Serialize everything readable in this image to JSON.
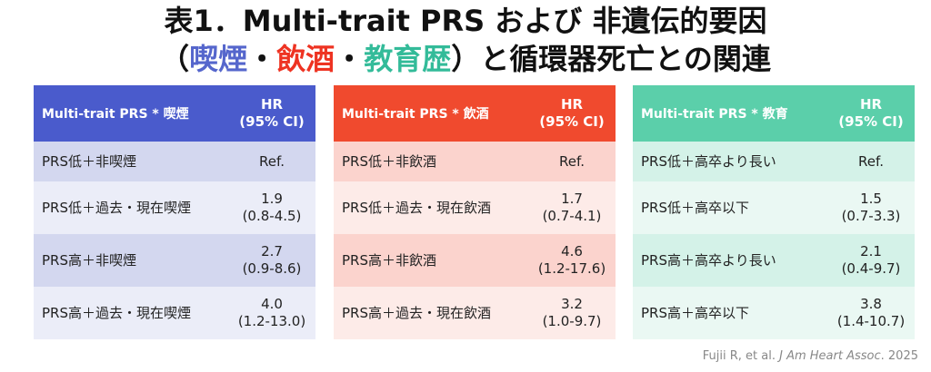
{
  "title": {
    "line1": "表1．Multi-trait PRS および 非遺伝的要因",
    "line2_open": "（",
    "smoke": "喫煙",
    "sep1": "・",
    "alcohol": "飲酒",
    "sep2": "・",
    "education": "教育歴",
    "line2_rest": "）と循環器死亡との関連"
  },
  "colors": {
    "smoke_accent": "#4a5bcc",
    "alcohol_accent": "#f04a2e",
    "education_accent": "#5bcfaa"
  },
  "tables": [
    {
      "header_label": "Multi-trait PRS * 喫煙",
      "header_hr_line1": "HR",
      "header_hr_line2": "(95% CI)",
      "rows": [
        {
          "label": "PRS低＋非喫煙",
          "hr": "Ref.",
          "ci": ""
        },
        {
          "label": "PRS低＋過去・現在喫煙",
          "hr": "1.9",
          "ci": "(0.8-4.5)"
        },
        {
          "label": "PRS高＋非喫煙",
          "hr": "2.7",
          "ci": "(0.9-8.6)"
        },
        {
          "label": "PRS高＋過去・現在喫煙",
          "hr": "4.0",
          "ci": "(1.2-13.0)"
        }
      ]
    },
    {
      "header_label": "Multi-trait PRS * 飲酒",
      "header_hr_line1": "HR",
      "header_hr_line2": "(95% CI)",
      "rows": [
        {
          "label": "PRS低＋非飲酒",
          "hr": "Ref.",
          "ci": ""
        },
        {
          "label": "PRS低＋過去・現在飲酒",
          "hr": "1.7",
          "ci": "(0.7-4.1)"
        },
        {
          "label": "PRS高＋非飲酒",
          "hr": "4.6",
          "ci": "(1.2-17.6)"
        },
        {
          "label": "PRS高＋過去・現在飲酒",
          "hr": "3.2",
          "ci": "(1.0-9.7)"
        }
      ]
    },
    {
      "header_label": "Multi-trait PRS * 教育",
      "header_hr_line1": "HR",
      "header_hr_line2": "(95% CI)",
      "rows": [
        {
          "label": "PRS低＋高卒より長い",
          "hr": "Ref.",
          "ci": ""
        },
        {
          "label": "PRS低＋高卒以下",
          "hr": "1.5",
          "ci": "(0.7-3.3)"
        },
        {
          "label": "PRS高＋高卒より長い",
          "hr": "2.1",
          "ci": "(0.4-9.7)"
        },
        {
          "label": "PRS高＋高卒以下",
          "hr": "3.8",
          "ci": "(1.4-10.7)"
        }
      ]
    }
  ],
  "citation": {
    "authors": "Fujii R, et al. ",
    "journal": "J Am Heart Assoc",
    "year": ". 2025"
  }
}
